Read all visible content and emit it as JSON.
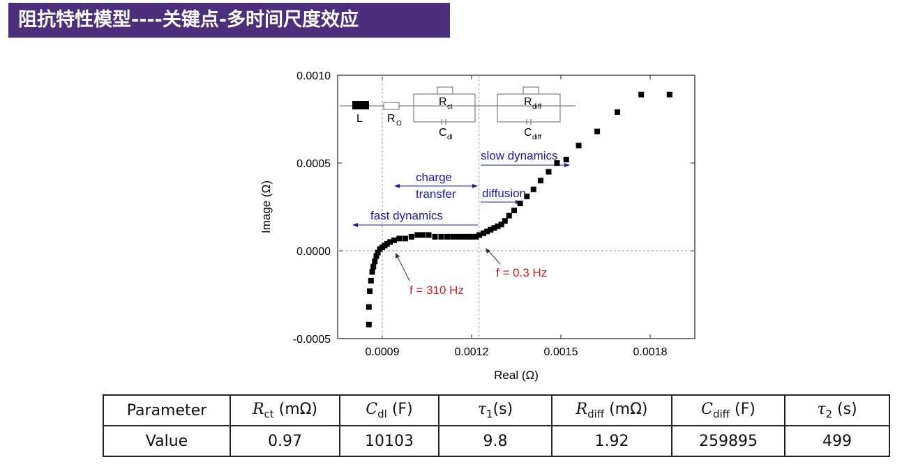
{
  "title": "阻抗特性模型----关键点-多时间尺度效应",
  "chart_data": {
    "type": "scatter",
    "xlabel": "Real (Ω)",
    "ylabel": "Image (Ω)",
    "xlim": [
      0.00075,
      0.00195
    ],
    "ylim": [
      -0.0005,
      0.001
    ],
    "xticks": [
      "0.0009",
      "0.0012",
      "0.0015",
      "0.0018"
    ],
    "xtick_values": [
      0.0009,
      0.0012,
      0.0015,
      0.0018
    ],
    "yticks": [
      "-0.0005",
      "0.0000",
      "0.0005",
      "0.0010"
    ],
    "ytick_values": [
      -0.0005,
      0.0,
      0.0005,
      0.001
    ],
    "grid": false,
    "series": [
      {
        "marker": "square",
        "color": "#000000",
        "x": [
          0.000855,
          0.000855,
          0.000858,
          0.000862,
          0.000866,
          0.00087,
          0.000875,
          0.00088,
          0.000885,
          0.000892,
          0.0009,
          0.000908,
          0.000916,
          0.000926,
          0.00094,
          0.000957,
          0.000977,
          0.000998,
          0.001018,
          0.001036,
          0.001056,
          0.001077,
          0.001098,
          0.001118,
          0.001137,
          0.001155,
          0.001172,
          0.001188,
          0.001202,
          0.001214,
          0.001226,
          0.00124,
          0.001252,
          0.001264,
          0.001276,
          0.001288,
          0.0013,
          0.001312,
          0.001326,
          0.001343,
          0.001363,
          0.001386,
          0.001408,
          0.001432,
          0.001459,
          0.001487,
          0.001518,
          0.00156,
          0.001622,
          0.00169,
          0.00177,
          0.001865
        ],
        "y": [
          -0.00042,
          -0.00032,
          -0.00023,
          -0.00017,
          -0.00012,
          -9e-05,
          -6e-05,
          -3e-05,
          -1e-05,
          1e-05,
          2e-05,
          3e-05,
          4e-05,
          5e-05,
          6e-05,
          7e-05,
          7e-05,
          8e-05,
          9e-05,
          9e-05,
          9e-05,
          8e-05,
          8e-05,
          8e-05,
          8e-05,
          8e-05,
          8e-05,
          8e-05,
          8e-05,
          8e-05,
          9e-05,
          0.0001,
          0.00011,
          0.00012,
          0.00013,
          0.00014,
          0.00015,
          0.00017,
          0.0002,
          0.00023,
          0.00027,
          0.00031,
          0.00035,
          0.0004,
          0.00045,
          0.0005,
          0.00052,
          0.0006,
          0.00068,
          0.00079,
          0.00089,
          0.00089
        ]
      }
    ],
    "annotations": {
      "freq_high": "f = 310 Hz",
      "freq_low": "f = 0.3 Hz",
      "slow": "slow dynamics",
      "charge1": "charge",
      "charge2": "transfer",
      "diffusion": "diffusion",
      "fast": "fast dynamics",
      "circuit_L": "L",
      "circuit_Ro": "R",
      "circuit_Ro_sub": "O",
      "circuit_Rct": "R",
      "circuit_Rct_sub": "ct",
      "circuit_Cdl": "C",
      "circuit_Cdl_sub": "dl",
      "circuit_Rdiff": "R",
      "circuit_Rdiff_sub": "diff",
      "circuit_Cdiff": "C",
      "circuit_Cdiff_sub": "diff"
    },
    "colors": {
      "annotation_blue": "#1a1aa6",
      "freq_red": "#d42020"
    }
  },
  "table": {
    "row1": {
      "label": "Parameter",
      "rct": "R",
      "rct_sub": "ct",
      "rct_unit": " (mΩ)",
      "cdl": "C",
      "cdl_sub": "dl",
      "cdl_unit": " (F)",
      "tau1": "τ",
      "tau1_sub": "1",
      "tau1_unit": "(s)",
      "rdiff": "R",
      "rdiff_sub": "diff",
      "rdiff_unit": " (mΩ)",
      "cdiff": "C",
      "cdiff_sub": "diff",
      "cdiff_unit": " (F)",
      "tau2": "τ",
      "tau2_sub": "2",
      "tau2_unit": " (s)"
    },
    "row2": [
      "Value",
      "0.97",
      "10103",
      "9.8",
      "1.92",
      "259895",
      "499"
    ]
  }
}
